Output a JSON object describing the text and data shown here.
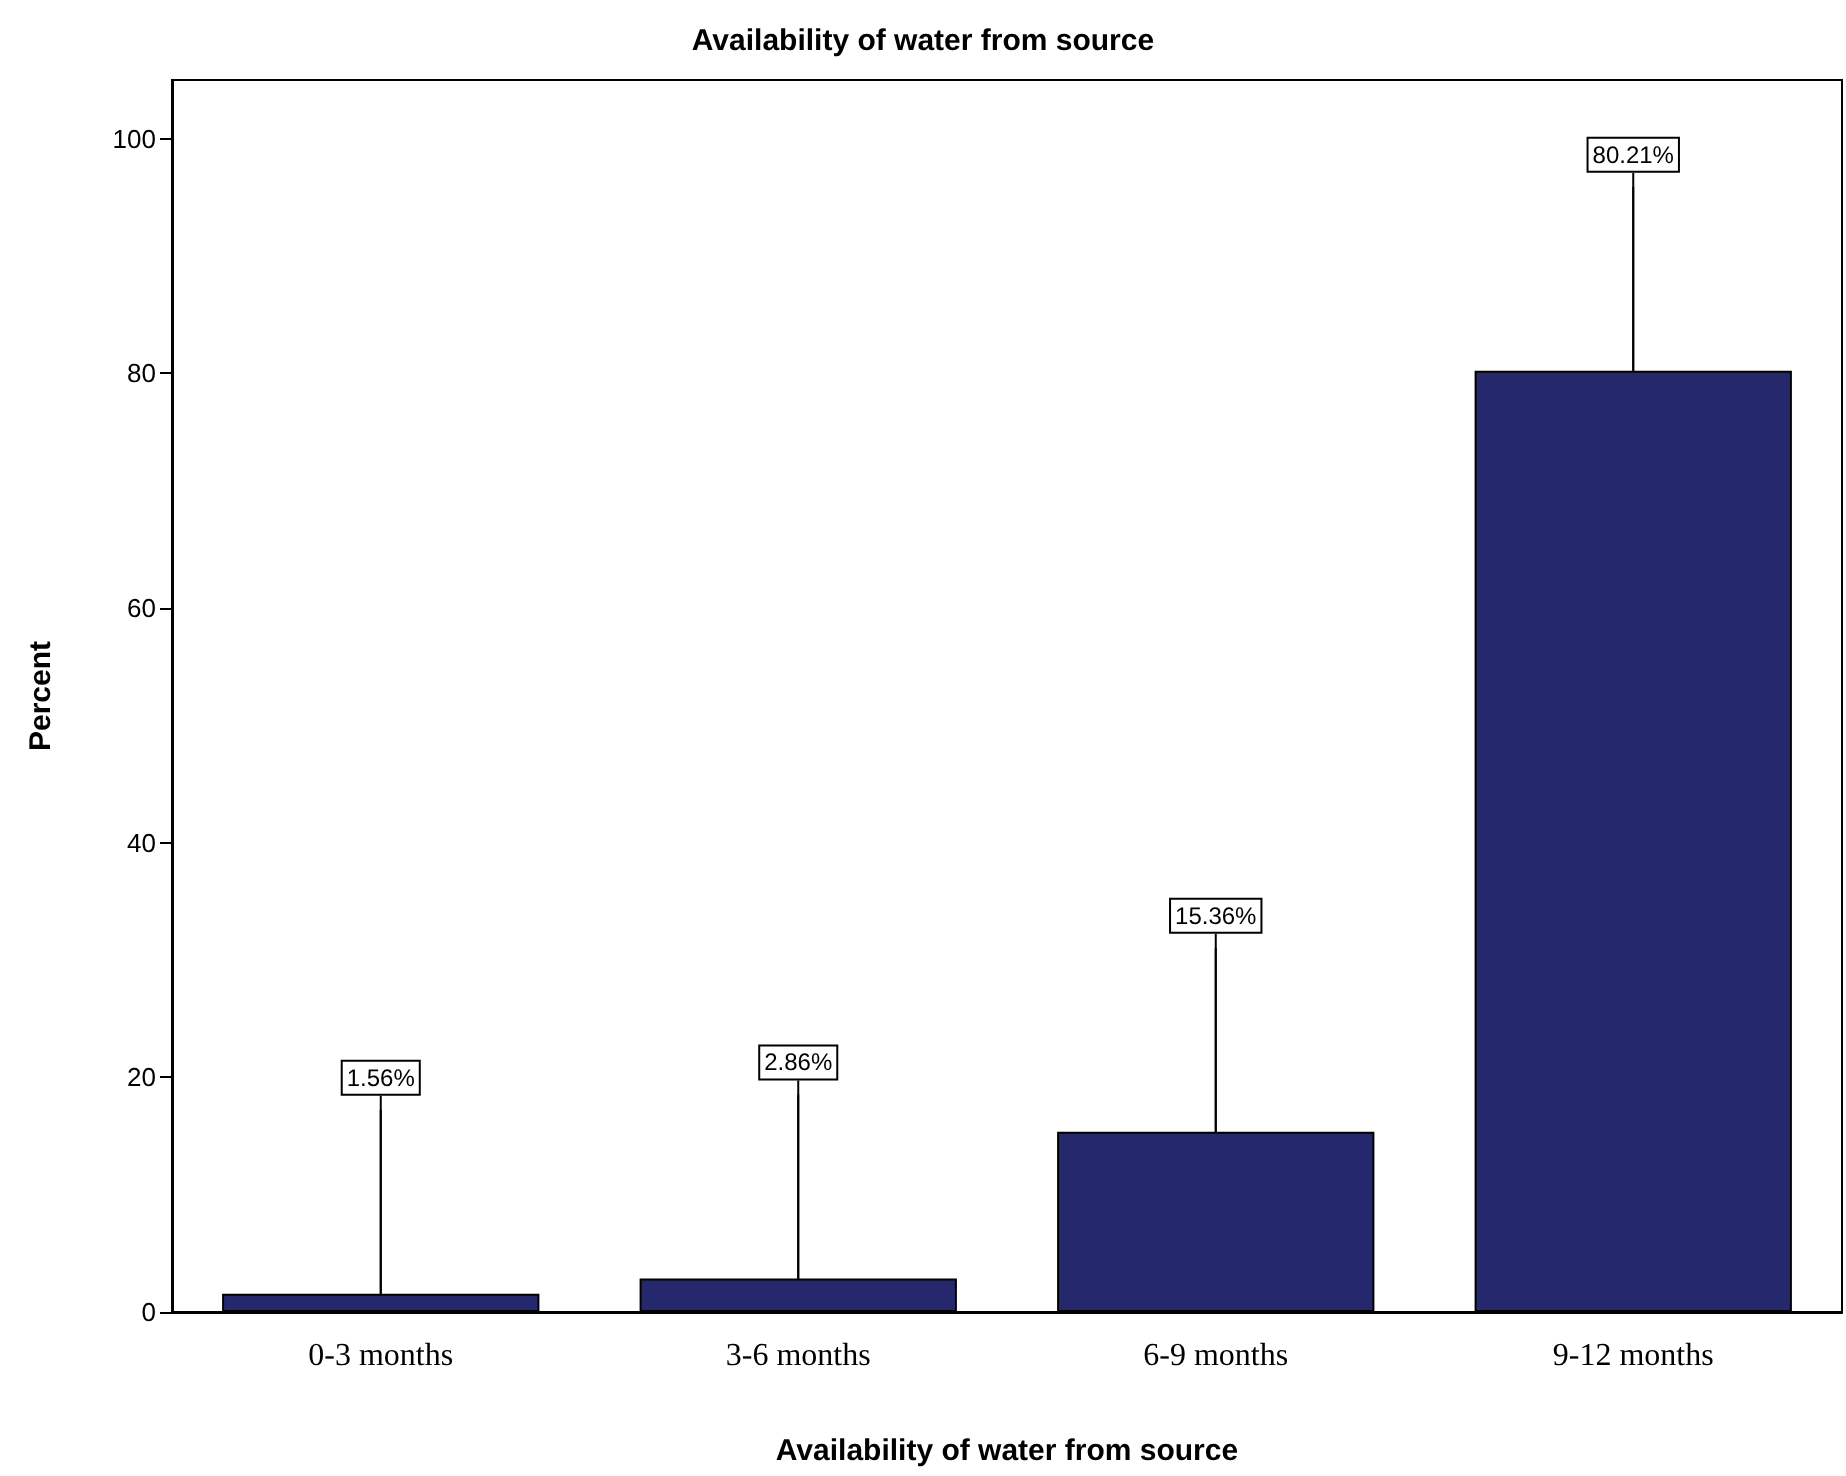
{
  "chart_data": {
    "type": "bar",
    "title": "Availability of water from source",
    "xlabel": "Availability of water from source",
    "ylabel": "Percent",
    "categories": [
      "0-3 months",
      "3-6 months",
      "6-9 months",
      "9-12 months"
    ],
    "values": [
      1.56,
      2.86,
      15.36,
      80.21
    ],
    "value_labels": [
      "1.56%",
      "2.86%",
      "15.36%",
      "80.21%"
    ],
    "color": "#26286e",
    "ylim": [
      0,
      105
    ],
    "yticks": [
      0,
      20,
      40,
      60,
      80,
      100
    ],
    "grid": false
  }
}
